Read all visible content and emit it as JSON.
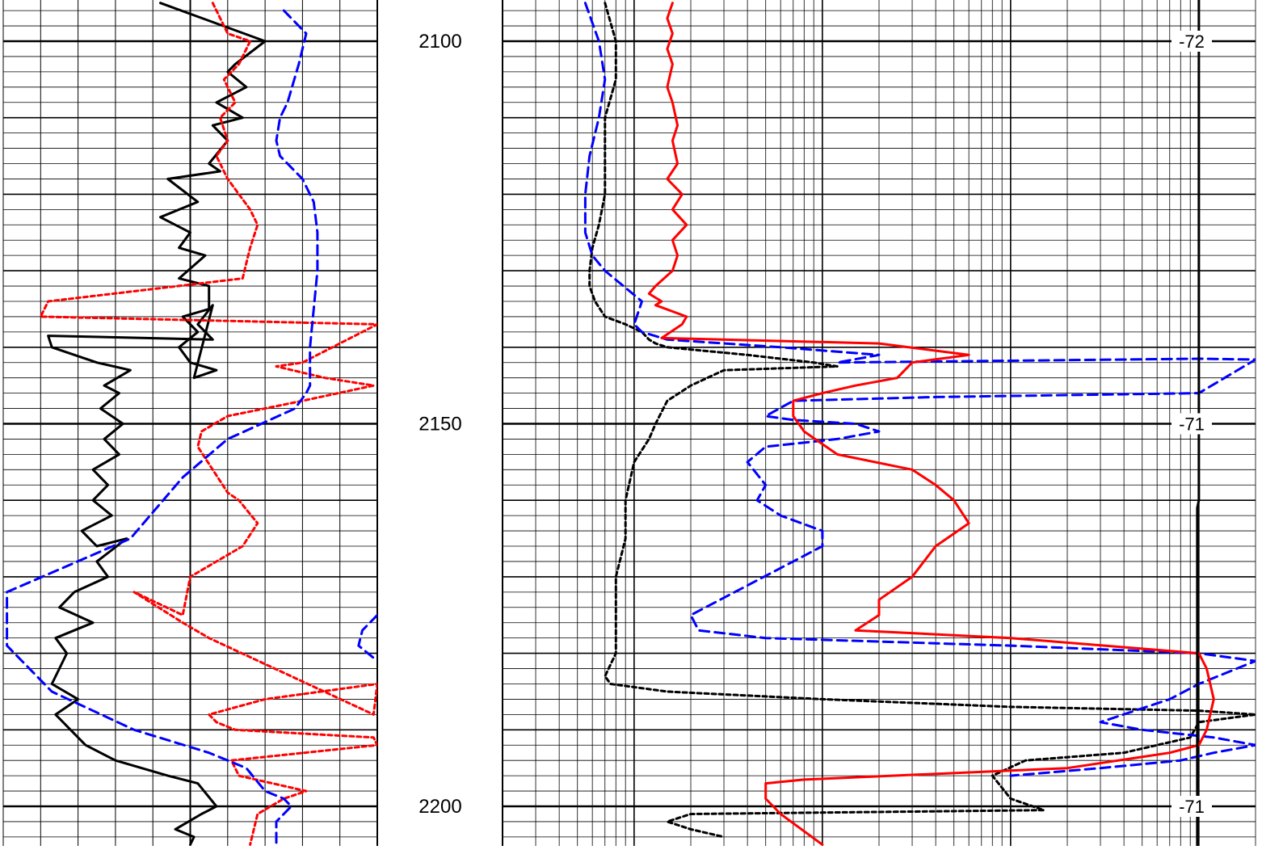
{
  "chart_data": {
    "type": "line",
    "title": "",
    "xlabel": "",
    "ylabel": "",
    "depth_axis": {
      "ylim": [
        2095,
        2205
      ],
      "ticks": [
        2100,
        2150,
        2200
      ],
      "tick_labels": [
        "2100",
        "2150",
        "2200"
      ]
    },
    "track1": {
      "xlim": [
        0,
        1
      ],
      "scale": "linear",
      "series": [
        {
          "name": "",
          "color": "#000000",
          "dash": "solid",
          "x": [
            0.42,
            0.7,
            0.62,
            0.6,
            0.65,
            0.57,
            0.64,
            0.56,
            0.6,
            0.55,
            0.58,
            0.44,
            0.52,
            0.42,
            0.5,
            0.47,
            0.54,
            0.47,
            0.55,
            0.55,
            0.48,
            0.52,
            0.47,
            0.5,
            0.57,
            0.51,
            0.56,
            0.52,
            0.56,
            0.12,
            0.13,
            0.25,
            0.34,
            0.27,
            0.31,
            0.26,
            0.32,
            0.27,
            0.31,
            0.24,
            0.28,
            0.24,
            0.29,
            0.21,
            0.25,
            0.33,
            0.25,
            0.28,
            0.19,
            0.15,
            0.24,
            0.14,
            0.17,
            0.15,
            0.13,
            0.2,
            0.14,
            0.18,
            0.22,
            0.3,
            0.44,
            0.52,
            0.57,
            0.53,
            0.46,
            0.51,
            0.5
          ],
          "y": [
            2095,
            2100,
            2103,
            2104,
            2106,
            2108,
            2110,
            2111,
            2113,
            2116,
            2117,
            2118,
            2121,
            2123,
            2125,
            2127,
            2128,
            2131,
            2132,
            2135,
            2136,
            2138,
            2140,
            2142,
            2143,
            2144,
            2134.5,
            2137,
            2139,
            2138.5,
            2140,
            2142,
            2143,
            2145,
            2146,
            2148,
            2150,
            2152,
            2154,
            2156,
            2158,
            2160,
            2162,
            2164,
            2166,
            2165,
            2168,
            2170,
            2172,
            2174,
            2176,
            2178,
            2180,
            2182,
            2184,
            2186,
            2188,
            2190,
            2192,
            2194,
            2196,
            2197,
            2200,
            2201,
            2203,
            2204,
            2205
          ]
        },
        {
          "name": "",
          "color": "#ff0000",
          "dash": "short",
          "x": [
            0.56,
            0.6,
            0.66,
            0.63,
            0.59,
            0.62,
            0.58,
            0.6,
            0.57,
            0.6,
            0.63,
            0.66,
            0.68,
            0.66,
            0.65,
            0.64,
            0.12,
            0.1,
            1.0,
            0.8,
            0.73,
            0.86,
            0.99,
            0.8,
            0.6,
            0.53,
            0.52,
            0.6,
            0.63,
            0.68,
            0.64,
            0.5,
            0.48,
            0.35,
            0.48,
            0.55,
            0.99,
            1.0,
            0.7,
            0.55,
            0.57,
            0.62,
            0.99,
            1.0,
            0.61,
            0.63,
            0.72,
            0.81,
            0.75,
            0.68,
            0.66
          ],
          "y": [
            2095,
            2099,
            2100,
            2103,
            2105,
            2108,
            2110,
            2113,
            2115,
            2118,
            2120,
            2122,
            2124,
            2127,
            2129,
            2131,
            2134,
            2136,
            2137,
            2142,
            2142.5,
            2144,
            2145,
            2147,
            2149,
            2151,
            2153,
            2159,
            2160,
            2163,
            2166,
            2170,
            2175,
            2172,
            2176,
            2178,
            2188,
            2184,
            2186,
            2188,
            2189,
            2190,
            2191,
            2192,
            2194,
            2196,
            2197,
            2198,
            2199,
            2201,
            2205
          ]
        },
        {
          "name": "",
          "color": "#0000ff",
          "dash": "long",
          "x": [
            0.75,
            0.81,
            0.79,
            0.76,
            0.74,
            0.73,
            0.74,
            0.8,
            0.83,
            0.84,
            0.84,
            0.83,
            0.82,
            0.82,
            0.81,
            0.78,
            0.6,
            0.48,
            0.34,
            0.01,
            0.01,
            0.13,
            0.35,
            0.55,
            0.65,
            0.7,
            0.75,
            0.77,
            0.73,
            0.73
          ],
          "y": [
            2096,
            2099,
            2103,
            2108,
            2110,
            2113,
            2115,
            2118,
            2121,
            2125,
            2130,
            2135,
            2140,
            2145,
            2146,
            2148,
            2152,
            2157,
            2165,
            2172,
            2179,
            2185,
            2190,
            2193,
            2195,
            2198,
            2199,
            2200,
            2202,
            2205
          ]
        },
        {
          "name": "",
          "color": "#0000ff",
          "dash": "long",
          "x": [
            1.0,
            0.96,
            0.95,
            1.0
          ],
          "y": [
            2175,
            2177,
            2179,
            2181
          ]
        }
      ]
    },
    "track2": {
      "xlim": [
        0.2,
        2000
      ],
      "scale": "log",
      "cutoff_value": 1000,
      "series": [
        {
          "name": "",
          "color": "#000000",
          "dash": "short",
          "x": [
            0.7,
            0.8,
            0.8,
            0.7,
            0.7,
            0.7,
            0.65,
            0.6,
            0.58,
            0.58,
            0.62,
            0.7,
            0.9,
            1.1,
            1.2,
            1.3,
            1.5,
            4,
            9,
            12,
            3,
            2,
            1.5,
            1.3,
            1.2,
            1.0,
            0.9,
            0.9,
            0.8,
            0.8,
            0.8,
            0.7,
            0.75,
            1.5,
            10,
            100,
            1000,
            2000,
            1000,
            900,
            400,
            120,
            80,
            100,
            150,
            2,
            1.5,
            2.0,
            3
          ],
          "y": [
            2095,
            2100,
            2105,
            2110,
            2115,
            2120,
            2124,
            2127,
            2130,
            2132,
            2134,
            2136,
            2137,
            2138,
            2139,
            2139.5,
            2140,
            2141,
            2142,
            2142.5,
            2143,
            2145,
            2147,
            2150,
            2152,
            2155,
            2160,
            2165,
            2170,
            2175,
            2180,
            2183,
            2184,
            2185,
            2186,
            2187,
            2187.5,
            2188,
            2189,
            2191,
            2193,
            2194,
            2196,
            2199,
            2200.5,
            2201,
            2202,
            2203,
            2204
          ]
        },
        {
          "name": "",
          "color": "#0000ff",
          "dash": "long",
          "x": [
            0.55,
            0.65,
            0.7,
            0.65,
            0.58,
            0.55,
            0.55,
            0.6,
            0.7,
            1.1,
            1.0,
            1.1,
            1.5,
            6,
            20,
            12,
            1000,
            2000,
            1000,
            40,
            7,
            5,
            7,
            15,
            20,
            12,
            5,
            4,
            5,
            4.5,
            6,
            10,
            10,
            2,
            2.2,
            5,
            100,
            1000,
            2000,
            1000,
            700,
            300,
            500,
            1200,
            2000,
            1200,
            800,
            300,
            100
          ],
          "y": [
            2095,
            2100,
            2105,
            2110,
            2115,
            2120,
            2125,
            2128,
            2130,
            2134,
            2137,
            2138,
            2139,
            2140,
            2141,
            2142,
            2141.5,
            2141.6,
            2146,
            2146.5,
            2147,
            2149,
            2149.5,
            2150,
            2151,
            2152,
            2153,
            2155,
            2158,
            2160,
            2162,
            2164,
            2166,
            2175,
            2177,
            2178,
            2179,
            2180,
            2181,
            2184,
            2186,
            2189,
            2190,
            2191,
            2192,
            2193,
            2194,
            2195,
            2196
          ]
        },
        {
          "name": "",
          "color": "#ff0000",
          "dash": "solid",
          "x": [
            1.6,
            1.5,
            1.6,
            1.5,
            1.6,
            1.5,
            1.6,
            1.7,
            1.6,
            1.7,
            1.5,
            1.8,
            1.6,
            1.9,
            1.6,
            1.7,
            1.6,
            1.3,
            1.2,
            1.4,
            1.3,
            1.9,
            1.8,
            1.4,
            20,
            60,
            30,
            25,
            15,
            10,
            7,
            7,
            8,
            12,
            30,
            40,
            50,
            60,
            40,
            30,
            20,
            20,
            15,
            100,
            1000,
            1100,
            1200,
            1100,
            1000,
            700,
            200,
            8,
            5,
            5,
            5,
            6,
            10
          ],
          "y": [
            2095,
            2097,
            2099,
            2101,
            2103,
            2106,
            2108,
            2111,
            2113,
            2116,
            2118,
            2120,
            2122,
            2124,
            2126,
            2128,
            2130,
            2132,
            2133,
            2134,
            2134.5,
            2136,
            2137,
            2138.8,
            2139.5,
            2141,
            2142,
            2144,
            2145,
            2146,
            2147,
            2149,
            2151,
            2154,
            2156,
            2158,
            2160,
            2163,
            2166,
            2170,
            2173,
            2175,
            2177,
            2178,
            2180,
            2182,
            2186,
            2190,
            2192,
            2193,
            2195,
            2196.5,
            2197,
            2198,
            2199,
            2201,
            2205
          ]
        }
      ]
    },
    "annotations": [
      {
        "depth": 2100,
        "text": "-72"
      },
      {
        "depth": 2150,
        "text": "-71"
      },
      {
        "depth": 2200,
        "text": "-71"
      }
    ],
    "grid": true
  }
}
